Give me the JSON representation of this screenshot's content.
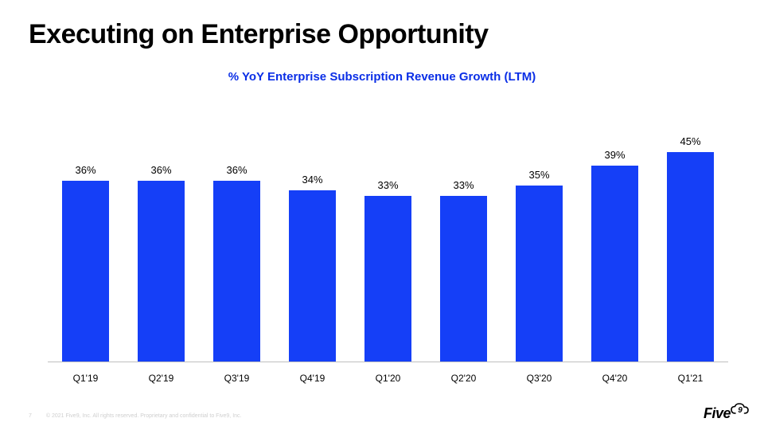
{
  "title": "Executing on Enterprise Opportunity",
  "subtitle": "% YoY Enterprise Subscription Revenue Growth (LTM)",
  "subtitle_color": "#0a2ee6",
  "chart": {
    "type": "bar",
    "categories": [
      "Q1'19",
      "Q2'19",
      "Q3'19",
      "Q4'19",
      "Q1'20",
      "Q2'20",
      "Q3'20",
      "Q4'20",
      "Q1'21"
    ],
    "values": [
      36,
      36,
      36,
      34,
      33,
      33,
      35,
      39,
      45
    ],
    "value_suffix": "%",
    "bar_color": "#153ff7",
    "value_label_max": 45,
    "value_label_fontsize": 13,
    "category_fontsize": 12,
    "axis_line_color": "#bfbfbf",
    "background_color": "#ffffff",
    "bar_width_ratio": 0.62
  },
  "footer": {
    "page": "7",
    "notice": "© 2021 Five9, Inc. All rights reserved. Proprietary and confidential to Five9, Inc."
  },
  "logo": {
    "brand_text": "Five",
    "cloud_digit": "9"
  }
}
